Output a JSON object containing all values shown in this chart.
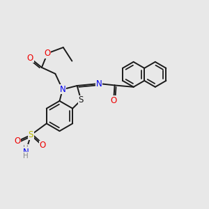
{
  "bg_color": "#e8e8e8",
  "bond_color": "#1a1a1a",
  "bond_width": 1.4,
  "atom_colors": {
    "N": "#0000ee",
    "O": "#ee0000",
    "S_yellow": "#bbbb00",
    "S_black": "#1a1a1a",
    "H": "#888888",
    "C": "#1a1a1a"
  },
  "font_size": 8.5
}
